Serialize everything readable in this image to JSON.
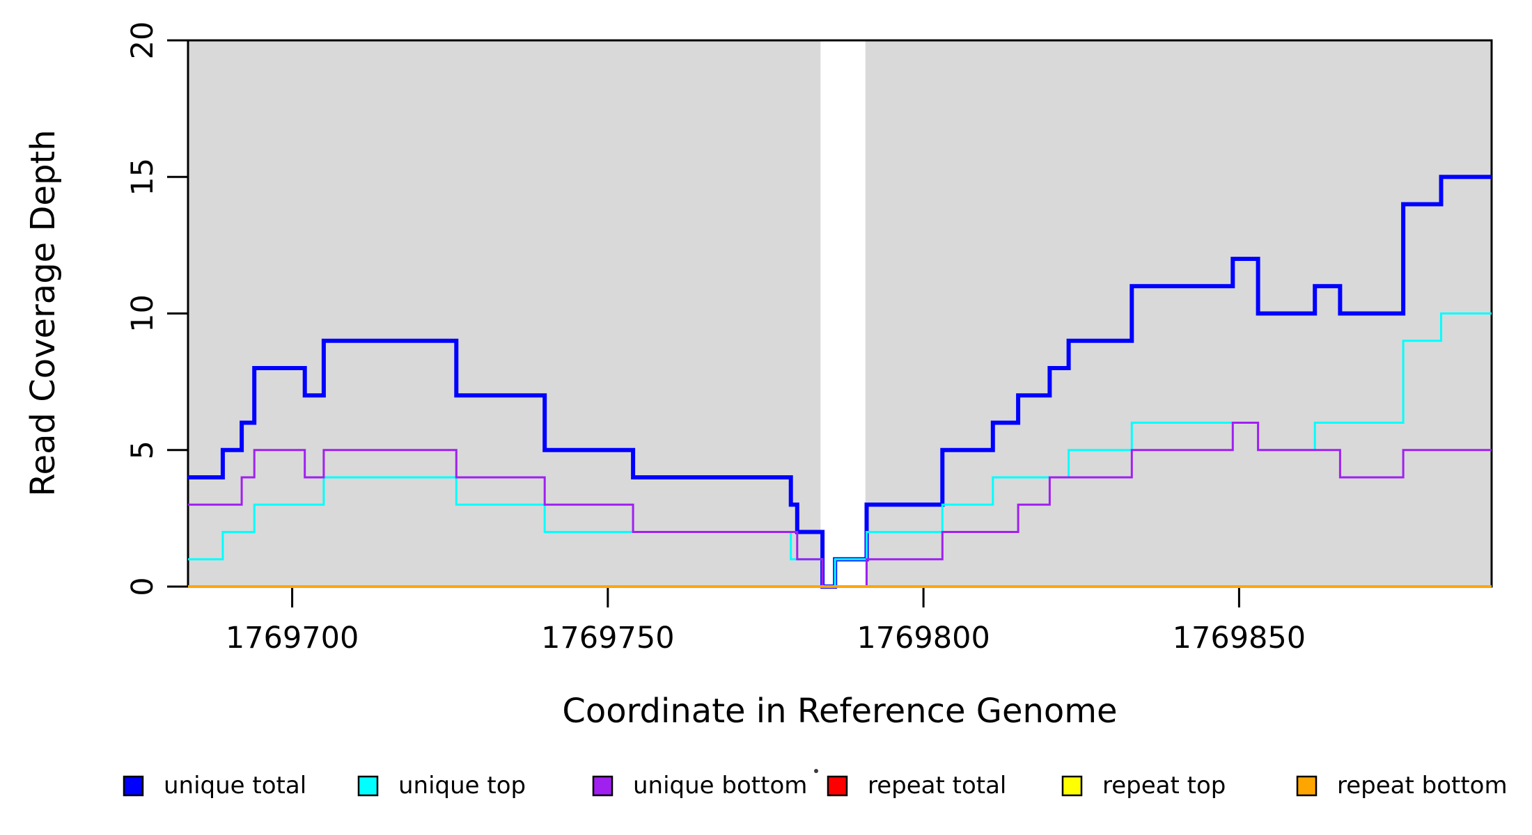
{
  "chart_data": {
    "type": "line",
    "subtype": "step",
    "title": "",
    "xlabel": "Coordinate in Reference Genome",
    "ylabel": "Read Coverage Depth",
    "xlim": [
      1769683.5,
      1769890.0
    ],
    "ylim": [
      0,
      20
    ],
    "x_ticks": [
      1769700,
      1769750,
      1769800,
      1769850
    ],
    "x_tick_labels": [
      "1769700",
      "1769750",
      "1769800",
      "1769850"
    ],
    "y_ticks": [
      0,
      5,
      10,
      15,
      20
    ],
    "y_tick_labels": [
      "0",
      "5",
      "10",
      "15",
      "20"
    ],
    "grid": false,
    "background_bands": {
      "color": "#D9D9D9",
      "comment": "gray shading = regions with unique-coverage; white gap is a repeat region",
      "regions": [
        [
          1769683.5,
          1769783.7
        ],
        [
          1769790.8,
          1769890.0
        ]
      ]
    },
    "series": [
      {
        "name": "unique total",
        "color": "#0000FF",
        "line_width": 6,
        "steps": [
          [
            1769684,
            4
          ],
          [
            1769689,
            5
          ],
          [
            1769692,
            6
          ],
          [
            1769694,
            8
          ],
          [
            1769702,
            7
          ],
          [
            1769705,
            9
          ],
          [
            1769726,
            7
          ],
          [
            1769740,
            5
          ],
          [
            1769754,
            4
          ],
          [
            1769779,
            3
          ],
          [
            1769780,
            2
          ],
          [
            1769784,
            0
          ],
          [
            1769786,
            1
          ],
          [
            1769791,
            3
          ],
          [
            1769803,
            5
          ],
          [
            1769811,
            6
          ],
          [
            1769815,
            7
          ],
          [
            1769820,
            8
          ],
          [
            1769823,
            9
          ],
          [
            1769833,
            11
          ],
          [
            1769849,
            12
          ],
          [
            1769853,
            10
          ],
          [
            1769862,
            11
          ],
          [
            1769866,
            10
          ],
          [
            1769876,
            14
          ],
          [
            1769882,
            15
          ]
        ]
      },
      {
        "name": "unique top",
        "color": "#00FFFF",
        "line_width": 3,
        "steps": [
          [
            1769684,
            1
          ],
          [
            1769689,
            2
          ],
          [
            1769694,
            3
          ],
          [
            1769705,
            4
          ],
          [
            1769726,
            3
          ],
          [
            1769740,
            2
          ],
          [
            1769779,
            1
          ],
          [
            1769784,
            0
          ],
          [
            1769786,
            1
          ],
          [
            1769791,
            2
          ],
          [
            1769803,
            3
          ],
          [
            1769811,
            4
          ],
          [
            1769823,
            5
          ],
          [
            1769833,
            6
          ],
          [
            1769853,
            5
          ],
          [
            1769862,
            6
          ],
          [
            1769876,
            9
          ],
          [
            1769882,
            10
          ]
        ]
      },
      {
        "name": "unique bottom",
        "color": "#A020F0",
        "line_width": 3,
        "steps": [
          [
            1769684,
            3
          ],
          [
            1769692,
            4
          ],
          [
            1769694,
            5
          ],
          [
            1769702,
            4
          ],
          [
            1769705,
            5
          ],
          [
            1769726,
            4
          ],
          [
            1769740,
            3
          ],
          [
            1769754,
            2
          ],
          [
            1769780,
            1
          ],
          [
            1769784,
            0
          ],
          [
            1769791,
            1
          ],
          [
            1769803,
            2
          ],
          [
            1769815,
            3
          ],
          [
            1769820,
            4
          ],
          [
            1769833,
            5
          ],
          [
            1769849,
            6
          ],
          [
            1769853,
            5
          ],
          [
            1769866,
            4
          ],
          [
            1769876,
            5
          ]
        ]
      },
      {
        "name": "repeat total",
        "color": "#FF0000",
        "line_width": 3,
        "steps": [
          [
            1769684,
            0
          ]
        ]
      },
      {
        "name": "repeat top",
        "color": "#FFFF00",
        "line_width": 3,
        "steps": [
          [
            1769684,
            0
          ]
        ]
      },
      {
        "name": "repeat bottom",
        "color": "#FFA500",
        "line_width": 4,
        "steps": [
          [
            1769684,
            0
          ]
        ]
      }
    ],
    "legend": {
      "position": "bottom",
      "items": [
        {
          "label": "unique total",
          "color": "#0000FF"
        },
        {
          "label": "unique top",
          "color": "#00FFFF"
        },
        {
          "label": "unique bottom",
          "color": "#A020F0"
        },
        {
          "label": "repeat total",
          "color": "#FF0000"
        },
        {
          "label": "repeat top",
          "color": "#FFFF00"
        },
        {
          "label": "repeat bottom",
          "color": "#FFA500"
        }
      ]
    }
  }
}
